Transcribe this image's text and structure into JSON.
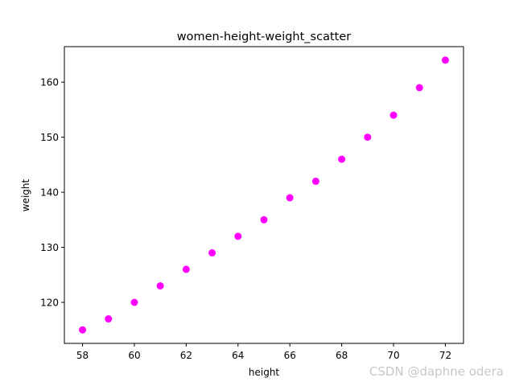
{
  "chart_data": {
    "type": "scatter",
    "title": "women-height-weight_scatter",
    "xlabel": "height",
    "ylabel": "weight",
    "x": [
      58,
      59,
      60,
      61,
      62,
      63,
      64,
      65,
      66,
      67,
      68,
      69,
      70,
      71,
      72
    ],
    "y": [
      115,
      117,
      120,
      123,
      126,
      129,
      132,
      135,
      139,
      142,
      146,
      150,
      154,
      159,
      164
    ],
    "xlim": [
      57.3,
      72.7
    ],
    "ylim": [
      112.55,
      166.45
    ],
    "xticks": [
      58,
      60,
      62,
      64,
      66,
      68,
      70,
      72
    ],
    "yticks": [
      120,
      130,
      140,
      150,
      160
    ],
    "marker_color": "#ff00ff",
    "grid": false,
    "legend": "none"
  },
  "watermark": "CSDN @daphne odera\u0001"
}
